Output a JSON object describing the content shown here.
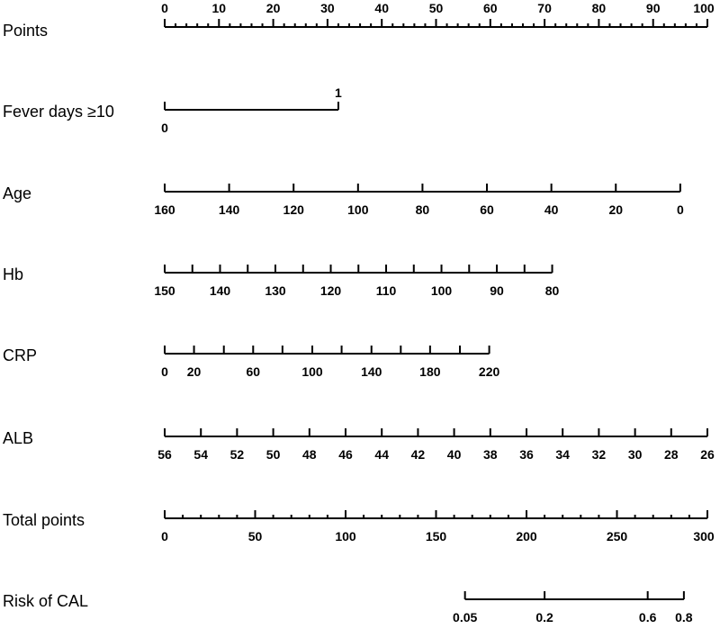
{
  "chart_data": {
    "type": "nomogram",
    "title": "",
    "rows": [
      {
        "label": "Points",
        "min": 0,
        "max": 100,
        "tick_labels": [
          "0",
          "10",
          "20",
          "30",
          "40",
          "50",
          "60",
          "70",
          "80",
          "90",
          "100"
        ],
        "tick_values": [
          0,
          10,
          20,
          30,
          40,
          50,
          60,
          70,
          80,
          90,
          100
        ],
        "minor_step": 2,
        "label_side": "above"
      },
      {
        "label": "Fever days ≥10",
        "points_range": [
          0,
          32
        ],
        "tick_labels": [
          "0",
          "1"
        ],
        "tick_points": [
          0,
          32
        ],
        "label_positions": [
          "below",
          "above"
        ]
      },
      {
        "label": "Age",
        "values": [
          160,
          140,
          120,
          100,
          80,
          60,
          40,
          20,
          0
        ],
        "tick_labels": [
          "160",
          "140",
          "120",
          "100",
          "80",
          "60",
          "40",
          "20",
          "0"
        ],
        "tick_points": [
          0,
          11.875,
          23.75,
          35.625,
          47.5,
          59.375,
          71.25,
          83.125,
          95
        ],
        "minor_ticks": false,
        "label_side": "below"
      },
      {
        "label": "Hb",
        "values": [
          150,
          140,
          130,
          120,
          110,
          100,
          90,
          80
        ],
        "tick_labels": [
          "150",
          "140",
          "130",
          "120",
          "110",
          "100",
          "90",
          "80"
        ],
        "tick_points": [
          0,
          10.2,
          20.4,
          30.6,
          40.8,
          51,
          61.2,
          71.4
        ],
        "minor_ticks": true,
        "label_side": "below"
      },
      {
        "label": "CRP",
        "values": [
          0,
          20,
          60,
          100,
          140,
          180,
          220
        ],
        "tick_labels": [
          "0",
          "20",
          "60",
          "100",
          "140",
          "180",
          "220"
        ],
        "tick_points": [
          0,
          5.4,
          16.3,
          27.2,
          38.1,
          48.9,
          59.8
        ],
        "extra_tick_points": [
          10.9,
          21.7,
          32.6,
          43.5,
          54.4
        ],
        "label_side": "below"
      },
      {
        "label": "ALB",
        "values": [
          56,
          54,
          52,
          50,
          48,
          46,
          44,
          42,
          40,
          38,
          36,
          34,
          32,
          30,
          28,
          26
        ],
        "tick_labels": [
          "56",
          "54",
          "52",
          "50",
          "48",
          "46",
          "44",
          "42",
          "40",
          "38",
          "36",
          "34",
          "32",
          "30",
          "28",
          "26"
        ],
        "tick_points": [
          0,
          6.67,
          13.33,
          20,
          26.67,
          33.33,
          40,
          46.67,
          53.33,
          60,
          66.67,
          73.33,
          80,
          86.67,
          93.33,
          100
        ],
        "label_side": "below"
      },
      {
        "label": "Total points",
        "min": 0,
        "max": 300,
        "tick_labels": [
          "0",
          "50",
          "100",
          "150",
          "200",
          "250",
          "300"
        ],
        "tick_values": [
          0,
          50,
          100,
          150,
          200,
          250,
          300
        ],
        "minor_step": 10,
        "label_side": "below"
      },
      {
        "label": "Risk of CAL",
        "values": [
          0.05,
          0.2,
          0.6,
          0.8
        ],
        "tick_labels": [
          "0.05",
          "0.2",
          "0.6",
          "0.8"
        ],
        "tick_total_points": [
          166,
          210,
          267,
          287
        ],
        "label_side": "below"
      }
    ]
  }
}
